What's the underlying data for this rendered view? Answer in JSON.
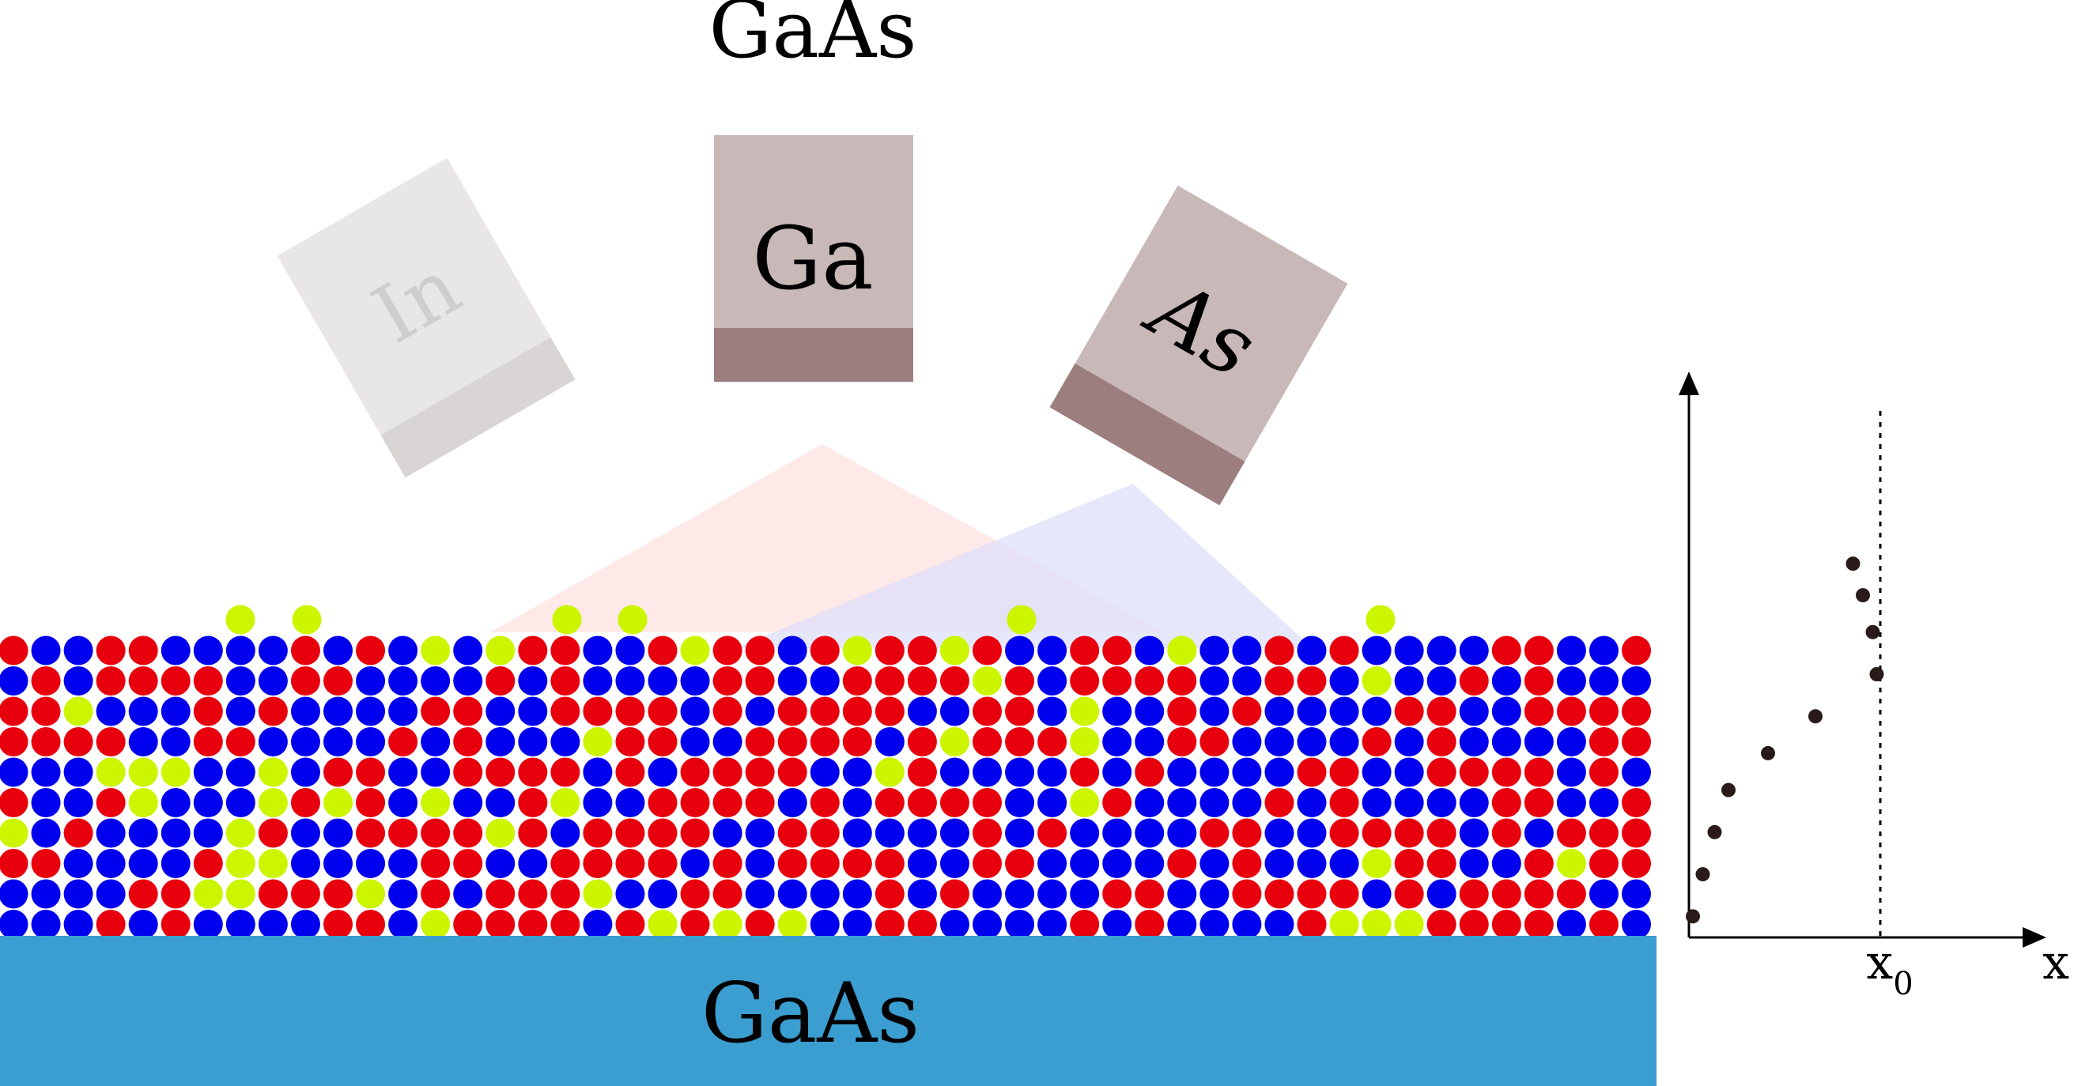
{
  "title": "GaAs",
  "sources": [
    {
      "label": "In",
      "face_color": "#e8e6e7",
      "shutter_color": "#d9d5d5",
      "label_color": "#cfcdcd",
      "italic": false
    },
    {
      "label": "Ga",
      "face_color": "#c9b8b8",
      "shutter_color": "#9d7e7e",
      "label_color": "#000000",
      "italic": false
    },
    {
      "label": "As",
      "face_color": "#c9b8b8",
      "shutter_color": "#9d7e7e",
      "label_color": "#000000",
      "italic": true
    }
  ],
  "substrate": {
    "label": "GaAs",
    "color": "#3a9ed0"
  },
  "lattice": {
    "colors": {
      "In": "#ccf500",
      "Ga": "#e8000d",
      "As": "#0000ee"
    }
  },
  "beams": {
    "ga_color": "#fde0e0",
    "as_color": "#dedff8"
  },
  "plot": {
    "x_axis_label": "x",
    "marker_label": "x",
    "marker_subscript": "0",
    "point_color": "#2a1a1a",
    "points": [
      {
        "x": 0.02,
        "y": 0.04
      },
      {
        "x": 0.07,
        "y": 0.12
      },
      {
        "x": 0.13,
        "y": 0.2
      },
      {
        "x": 0.2,
        "y": 0.28
      },
      {
        "x": 0.4,
        "y": 0.35
      },
      {
        "x": 0.64,
        "y": 0.42
      },
      {
        "x": 0.83,
        "y": 0.71
      },
      {
        "x": 0.88,
        "y": 0.65
      },
      {
        "x": 0.93,
        "y": 0.58
      },
      {
        "x": 0.95,
        "y": 0.5
      }
    ],
    "x0": 0.98
  }
}
